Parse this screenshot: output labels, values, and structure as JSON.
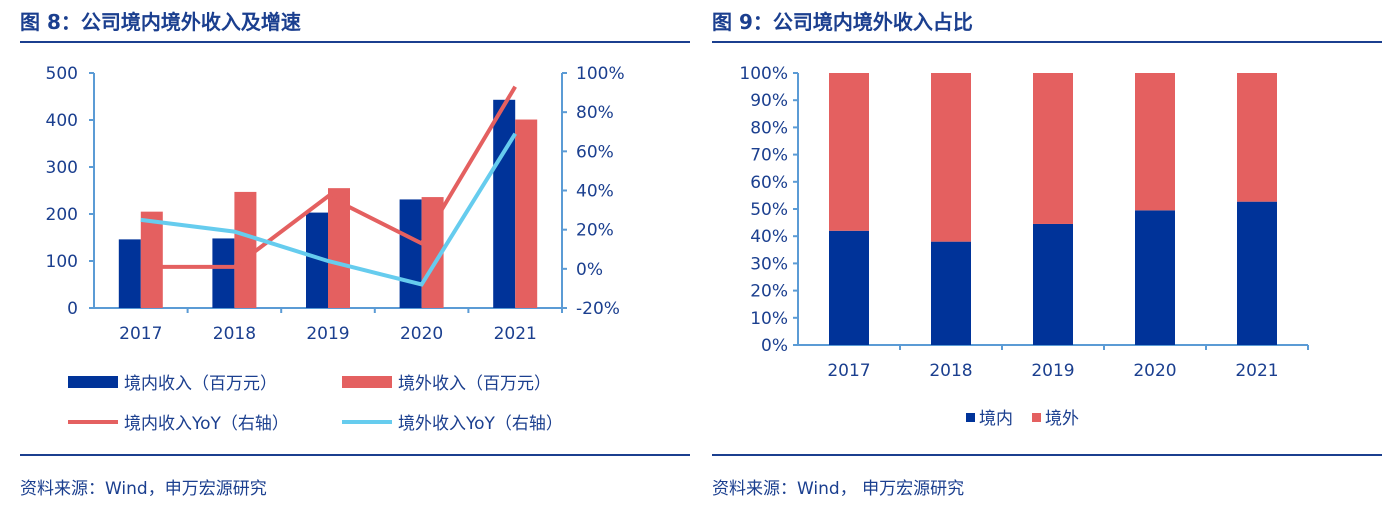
{
  "colors": {
    "domestic": "#003399",
    "overseas": "#e46060",
    "domestic_yoy": "#e46060",
    "overseas_yoy": "#66ccee",
    "axis": "#5b9bd5",
    "title": "#1b3f8f"
  },
  "left": {
    "title": "图 8：公司境内境外收入及增速",
    "source": "资料来源：Wind，申万宏源研究"
  },
  "right": {
    "title": "图 9：公司境内境外收入占比",
    "source": "资料来源：Wind， 申万宏源研究"
  },
  "chart_data": [
    {
      "type": "bar+line",
      "categories": [
        "2017",
        "2018",
        "2019",
        "2020",
        "2021"
      ],
      "ylim": [
        0,
        500
      ],
      "yticks": [
        "0",
        "100",
        "200",
        "300",
        "400",
        "500"
      ],
      "y2lim": [
        -20,
        100
      ],
      "y2ticks": [
        "-20%",
        "0%",
        "20%",
        "40%",
        "60%",
        "80%",
        "100%"
      ],
      "series": [
        {
          "name": "境内收入（百万元）",
          "type": "bar",
          "axis": "left",
          "values": [
            146,
            148,
            203,
            231,
            443
          ]
        },
        {
          "name": "境外收入（百万元）",
          "type": "bar",
          "axis": "left",
          "values": [
            205,
            247,
            255,
            236,
            401
          ]
        },
        {
          "name": "境内收入YoY（右轴）",
          "type": "line",
          "axis": "right",
          "values": [
            1,
            1,
            37,
            13,
            93
          ]
        },
        {
          "name": "境外收入YoY（右轴）",
          "type": "line",
          "axis": "right",
          "values": [
            25,
            19,
            4,
            -8,
            69
          ]
        }
      ],
      "legend": "bottom"
    },
    {
      "type": "stacked-bar",
      "categories": [
        "2017",
        "2018",
        "2019",
        "2020",
        "2021"
      ],
      "ylim": [
        0,
        100
      ],
      "yticks": [
        "0%",
        "10%",
        "20%",
        "30%",
        "40%",
        "50%",
        "60%",
        "70%",
        "80%",
        "90%",
        "100%"
      ],
      "series": [
        {
          "name": "境内",
          "values": [
            42,
            38,
            44.5,
            49.5,
            52.7
          ]
        },
        {
          "name": "境外",
          "values": [
            58,
            62,
            55.5,
            50.5,
            47.3
          ]
        }
      ],
      "legend": "bottom"
    }
  ]
}
